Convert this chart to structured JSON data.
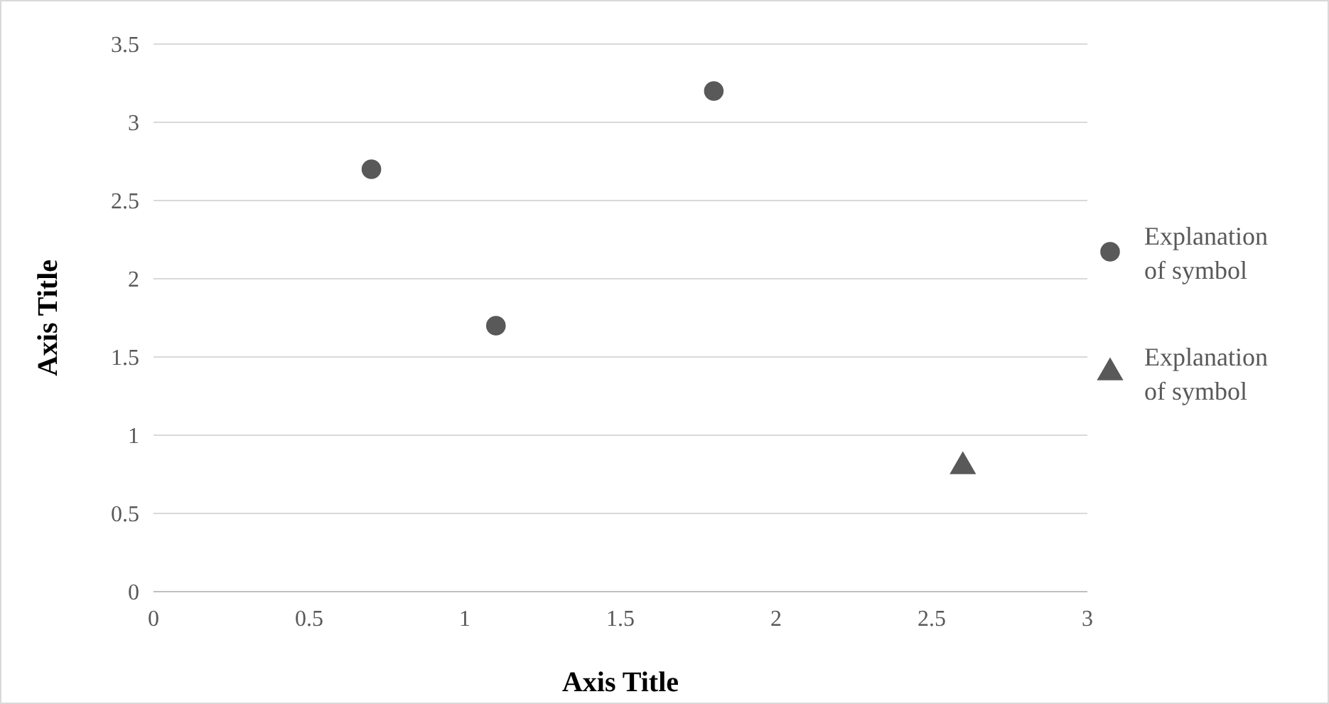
{
  "chart_data": {
    "type": "scatter",
    "xlabel": "Axis Title",
    "ylabel": "Axis Title",
    "xlim": [
      0,
      3
    ],
    "xticks": [
      0,
      0.5,
      1,
      1.5,
      2,
      2.5,
      3
    ],
    "ylim": [
      0,
      3.5
    ],
    "yticks": [
      0,
      0.5,
      1,
      1.5,
      2,
      2.5,
      3,
      3.5
    ],
    "grid": "y",
    "legend": "right",
    "series": [
      {
        "name": "Explanation of symbol",
        "color": "#595959",
        "marker": "circle",
        "x": [
          0.7,
          1.1,
          1.8
        ],
        "values": [
          2.7,
          1.7,
          3.2
        ]
      },
      {
        "name": "Explanation of symbol",
        "color": "#595959",
        "marker": "triangle",
        "x": [
          2.6
        ],
        "values": [
          0.8
        ]
      }
    ]
  }
}
